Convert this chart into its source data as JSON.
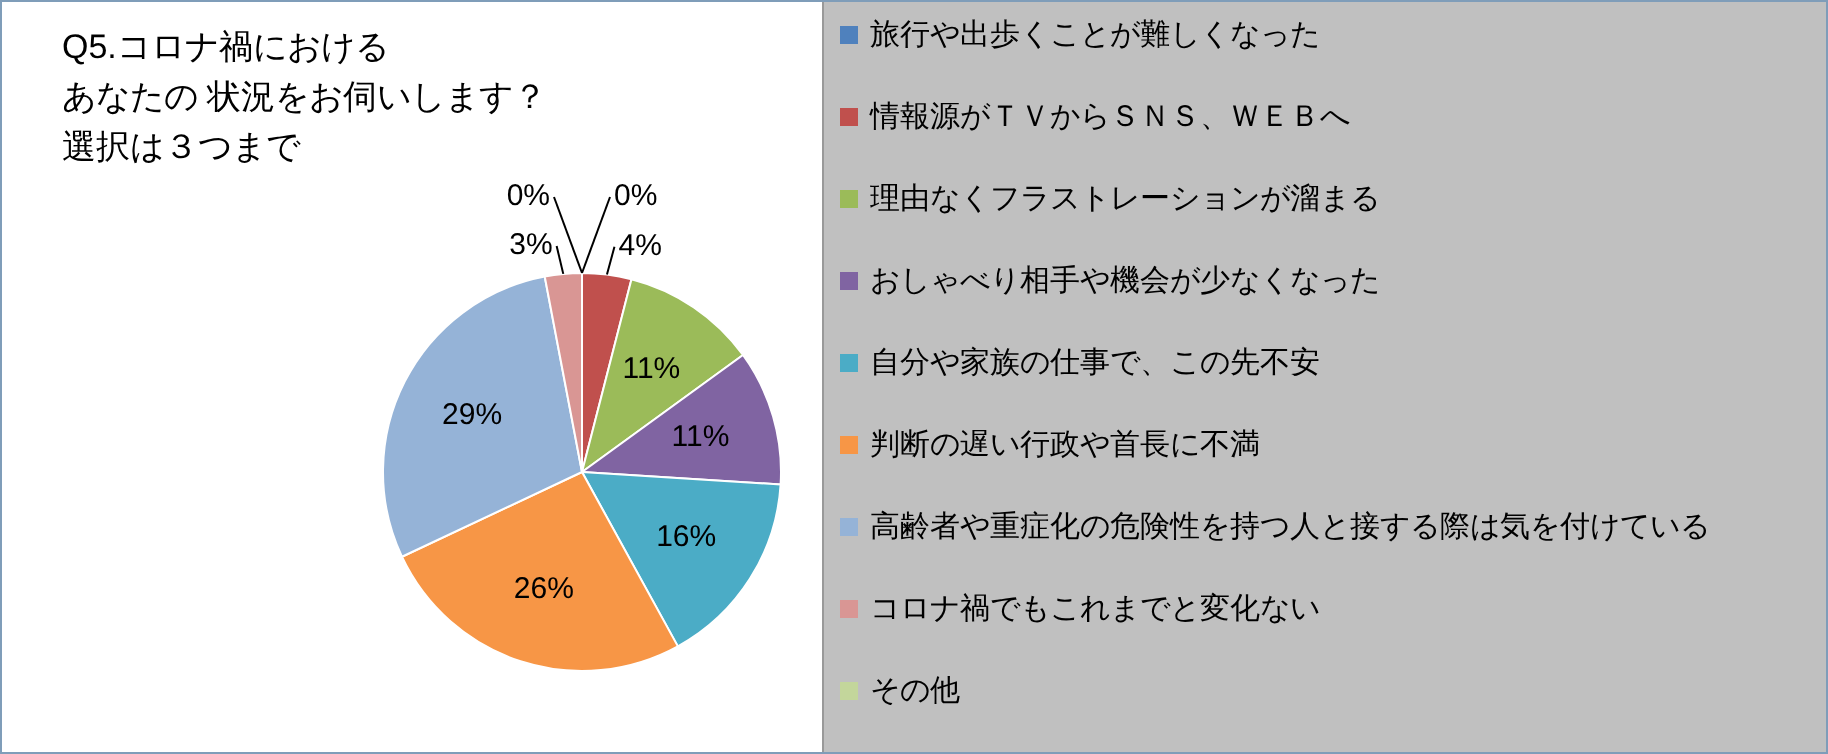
{
  "chart_data": {
    "type": "pie",
    "title": "Q5.コロナ禍における",
    "subtitle": "あなたの 状況をお伺いします？",
    "annotations": [
      "選択は３つまで"
    ],
    "categories": [
      "旅行や出歩くことが難しくなった",
      "情報源がＴＶからＳＮＳ、ＷＥＢへ",
      "理由なくフラストレーションが溜まる",
      "おしゃべり相手や機会が少なくなった",
      "自分や家族の仕事で、この先不安",
      "判断の遅い行政や首長に不満",
      "高齢者や重症化の危険性を持つ人と接する際は気を付けている",
      "コロナ禍でもこれまでと変化ない",
      "その他"
    ],
    "values": [
      0,
      4,
      11,
      11,
      16,
      26,
      29,
      3,
      0
    ],
    "colors": [
      "#4f81bd",
      "#c0504d",
      "#9bbb59",
      "#8064a2",
      "#4bacc6",
      "#f79646",
      "#95b3d7",
      "#d99694",
      "#c3d69b"
    ],
    "value_labels": [
      "0%",
      "4%",
      "11%",
      "11%",
      "16%",
      "26%",
      "29%",
      "3%",
      "0%"
    ],
    "legend": "right"
  }
}
